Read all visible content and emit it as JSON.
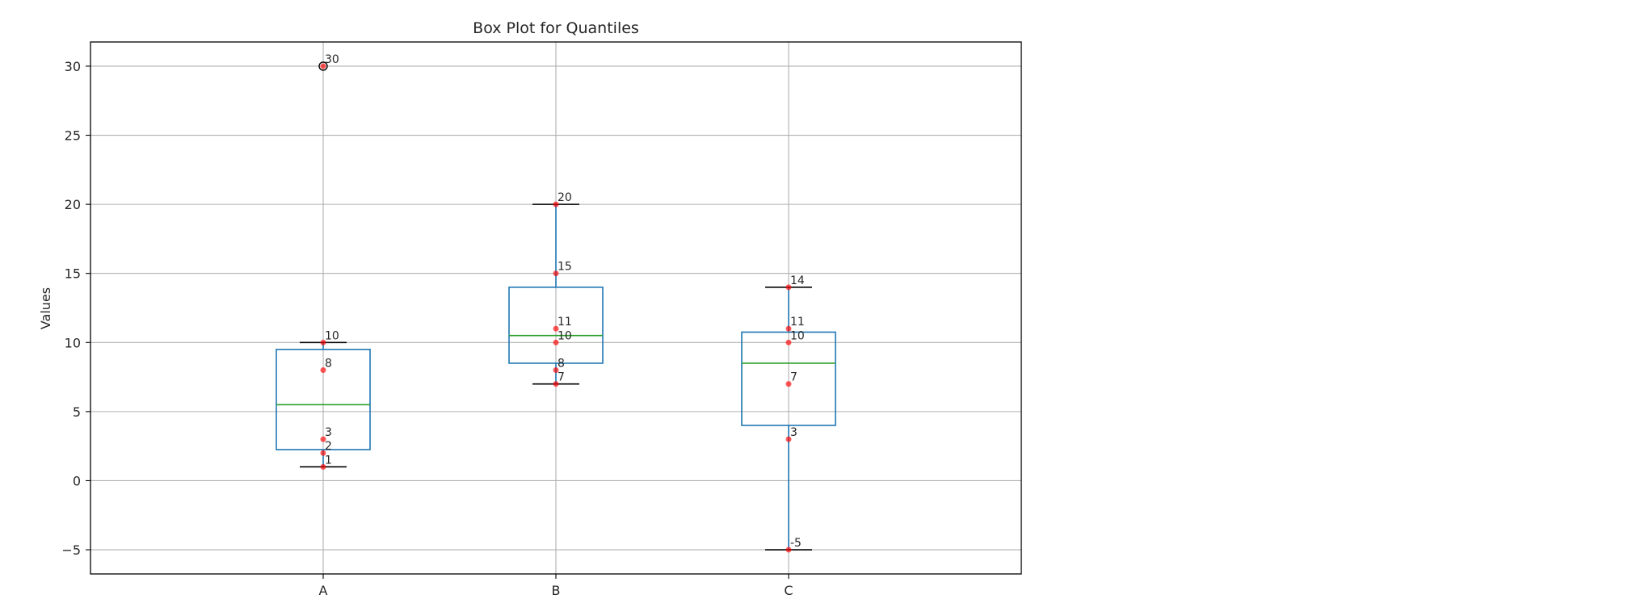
{
  "chart_data": {
    "type": "box",
    "title": "Box Plot for Quantiles",
    "xlabel": "",
    "ylabel": "Values",
    "categories": [
      "A",
      "B",
      "C"
    ],
    "ylim": [
      -6.75,
      31.75
    ],
    "yticks": [
      -5,
      0,
      5,
      10,
      15,
      20,
      25,
      30
    ],
    "ytick_labels": [
      "−5",
      "0",
      "5",
      "10",
      "15",
      "20",
      "25",
      "30"
    ],
    "grid": true,
    "colors": {
      "box": "#1f77b4",
      "median": "#2ca02c",
      "whisker_cap": "#000000",
      "point": "#ff0000",
      "outlier_edge": "#000000",
      "grid": "#b0b0b0"
    },
    "boxes": [
      {
        "name": "A",
        "values": [
          1,
          2,
          3,
          8,
          10,
          30
        ],
        "q1": 2.25,
        "median": 5.5,
        "q3": 9.5,
        "whisker_low": 1,
        "whisker_high": 10,
        "outliers": [
          30
        ]
      },
      {
        "name": "B",
        "values": [
          7,
          8,
          10,
          11,
          15,
          20
        ],
        "q1": 8.5,
        "median": 10.5,
        "q3": 14,
        "whisker_low": 7,
        "whisker_high": 20,
        "outliers": []
      },
      {
        "name": "C",
        "values": [
          -5,
          3,
          7,
          10,
          11,
          14
        ],
        "q1": 4,
        "median": 8.5,
        "q3": 10.75,
        "whisker_low": -5,
        "whisker_high": 14,
        "outliers": []
      }
    ]
  }
}
